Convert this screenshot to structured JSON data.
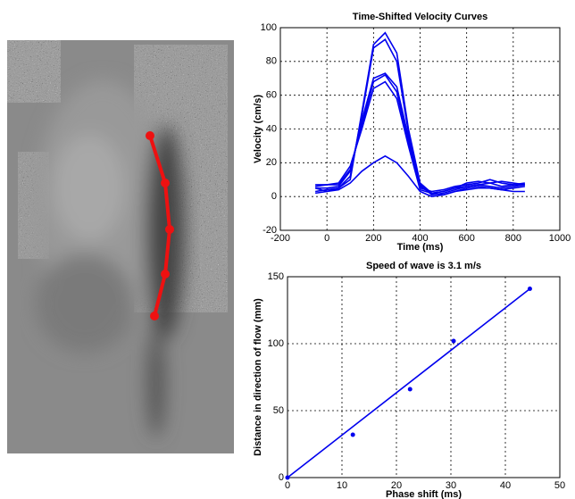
{
  "chart_data": [
    {
      "type": "line",
      "title": "Time-Shifted Velocity Curves",
      "xlabel": "Time (ms)",
      "ylabel": "Velocity (cm/s)",
      "x": [
        -50,
        0,
        50,
        100,
        150,
        200,
        250,
        300,
        350,
        400,
        450,
        500,
        550,
        600,
        650,
        700,
        750,
        800,
        850
      ],
      "series": [
        {
          "color": "#0000ee",
          "values": [
            2,
            3,
            5,
            10,
            50,
            90,
            97,
            85,
            40,
            8,
            2,
            1,
            3,
            5,
            6,
            5,
            4,
            5,
            6
          ]
        },
        {
          "color": "#0000ee",
          "values": [
            3,
            4,
            5,
            12,
            48,
            88,
            93,
            80,
            38,
            7,
            1,
            2,
            4,
            6,
            7,
            6,
            5,
            6,
            7
          ]
        },
        {
          "color": "#0000ee",
          "values": [
            5,
            5,
            6,
            15,
            45,
            70,
            73,
            65,
            35,
            6,
            2,
            3,
            5,
            8,
            9,
            8,
            6,
            7,
            7
          ]
        },
        {
          "color": "#0000ee",
          "values": [
            6,
            7,
            7,
            16,
            42,
            68,
            72,
            62,
            32,
            5,
            3,
            4,
            6,
            7,
            8,
            10,
            8,
            7,
            8
          ]
        },
        {
          "color": "#0000ee",
          "values": [
            7,
            7,
            8,
            18,
            40,
            64,
            68,
            58,
            30,
            4,
            2,
            3,
            5,
            6,
            7,
            8,
            9,
            8,
            7
          ]
        },
        {
          "color": "#0000ee",
          "values": [
            5,
            3,
            4,
            8,
            15,
            20,
            24,
            20,
            12,
            3,
            0,
            1,
            3,
            4,
            5,
            5,
            4,
            3,
            3
          ]
        }
      ],
      "xlim": [
        -200,
        1000
      ],
      "xticks": [
        -200,
        0,
        200,
        400,
        600,
        800,
        1000
      ],
      "ylim": [
        -20,
        100
      ],
      "yticks": [
        -20,
        0,
        20,
        40,
        60,
        80,
        100
      ],
      "grid": true
    },
    {
      "type": "scatter",
      "title": "Speed of wave is 3.1 m/s",
      "xlabel": "Phase shift (ms)",
      "ylabel": "Distance in direction of flow (mm)",
      "series": [
        {
          "mode": "markers",
          "color": "#0000ee",
          "x": [
            0,
            12,
            22.5,
            30.5,
            44.5
          ],
          "values": [
            0,
            32,
            66,
            102,
            141
          ]
        },
        {
          "mode": "line",
          "color": "#0000ee",
          "x": [
            0,
            44.5
          ],
          "values": [
            0,
            141
          ]
        }
      ],
      "xlim": [
        0,
        50
      ],
      "xticks": [
        0,
        10,
        20,
        30,
        40,
        50
      ],
      "ylim": [
        0,
        150
      ],
      "yticks": [
        0,
        50,
        100,
        150
      ],
      "grid": true
    }
  ]
}
